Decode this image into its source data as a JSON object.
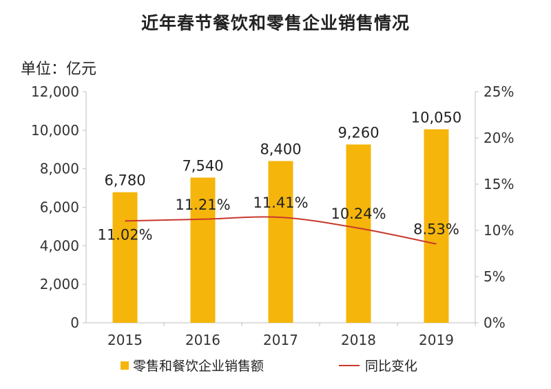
{
  "title": "近年春节餐饮和零售企业销售情况",
  "unit_label": "单位：亿元",
  "colors": {
    "bar": "#F5B50A",
    "line": "#C8382D",
    "axis": "#BFBFBF"
  },
  "chart_data": {
    "type": "bar",
    "categories": [
      "2015",
      "2016",
      "2017",
      "2018",
      "2019"
    ],
    "series": [
      {
        "name": "零售和餐饮企业销售额",
        "type": "bar",
        "axis": "left",
        "values": [
          6780,
          7540,
          8400,
          9260,
          10050
        ],
        "labels": [
          "6,780",
          "7,540",
          "8,400",
          "9,260",
          "10,050"
        ]
      },
      {
        "name": "同比变化",
        "type": "line",
        "axis": "right",
        "values": [
          11.02,
          11.21,
          11.41,
          10.24,
          8.53
        ],
        "labels": [
          "11.02%",
          "11.21%",
          "11.41%",
          "10.24%",
          "8.53%"
        ]
      }
    ],
    "ylim_left": [
      0,
      12000
    ],
    "yticks_left": [
      "0",
      "2,000",
      "4,000",
      "6,000",
      "8,000",
      "10,000",
      "12,000"
    ],
    "ylim_right": [
      0,
      25
    ],
    "yticks_right": [
      "0%",
      "5%",
      "10%",
      "15%",
      "20%",
      "25%"
    ],
    "grid": false,
    "legend_position": "bottom"
  }
}
